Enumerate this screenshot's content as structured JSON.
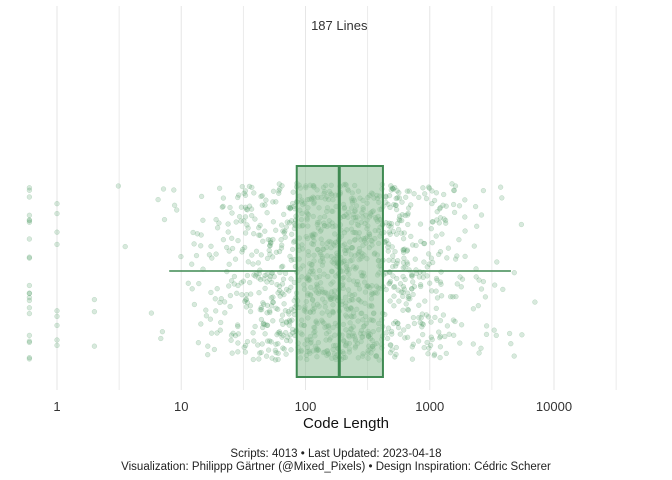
{
  "chart_data": {
    "type": "boxplot_jitter",
    "x_scale": "log10",
    "xlim": [
      0.6,
      5000
    ],
    "xlabel": "Code Length",
    "x_ticks": [
      1,
      10,
      100,
      1000,
      10000
    ],
    "x_tick_labels": [
      "1",
      "10",
      "100",
      "1000",
      "10000"
    ],
    "median_annotation": "187 Lines",
    "n": 4013,
    "box": {
      "whisker_low": 8,
      "q1": 85,
      "median": 187,
      "q3": 420,
      "whisker_high": 4500
    },
    "jitter_points_shown": 1300,
    "colors": {
      "point": "#4f9a62",
      "box_fill": "#8fbf98",
      "box_stroke": "#3f8a52",
      "grid": "#e6e6e6"
    },
    "grid": true
  },
  "caption": {
    "line1": "Scripts: 4013 • Last Updated: 2023-04-18",
    "line2": "Visualization: Philippp Gärtner (@Mixed_Pixels) • Design Inspiration: Cédric Scherer"
  }
}
